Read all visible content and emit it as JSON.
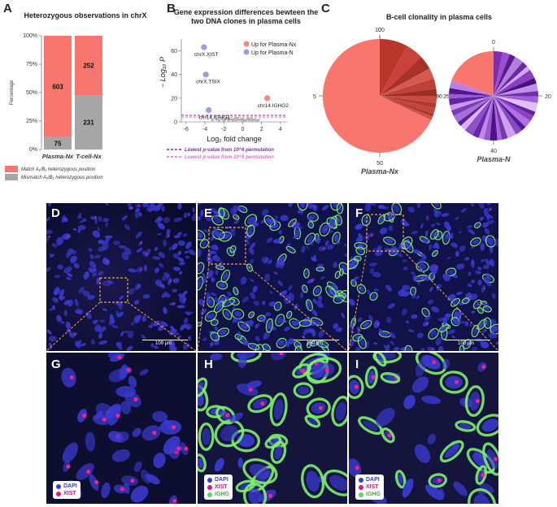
{
  "panelA": {
    "letter": "A",
    "title": "Heterozygous observations in chrX",
    "ylabel": "Percentage",
    "legend": [
      {
        "label": "Match A₁/B₁ heterozygous position",
        "color": "#f8766d"
      },
      {
        "label": "Mismatch A₁/B₁ heterozygous position",
        "color": "#a6a6a6"
      }
    ]
  },
  "panelB": {
    "letter": "B",
    "title_line1": "Gene expression differences bewteen the",
    "title_line2": "two DNA clones in plasma cells",
    "xlabel": "Log₂ fold change",
    "ylabel": "− Log₁₀ P",
    "legend": [
      {
        "label": "Up for Plasma-Nx",
        "color": "#f08a7e"
      },
      {
        "label": "Up for Plasma-N",
        "color": "#a49ad8"
      }
    ],
    "threshold_legend": [
      {
        "label": "Lowest p-value from 10^6 permutation",
        "color": "#7a2f9e"
      },
      {
        "label": "Lowest p-value from 10^5 permutation",
        "color": "#e46fc0"
      }
    ]
  },
  "panelC": {
    "letter": "C",
    "title": "B-cell clonality in plasma cells",
    "pie1_label": "Plasma-Nx",
    "pie2_label": "Plasma-N",
    "pie1_ticks": [
      "0",
      "25",
      "50",
      "75",
      "100"
    ],
    "pie2_ticks": [
      "0",
      "20",
      "40",
      "60"
    ]
  },
  "micro": {
    "letters": [
      "D",
      "E",
      "F",
      "G",
      "H",
      "I"
    ],
    "scale_label": "100 μm",
    "legendG": [
      {
        "label": "DAPI",
        "color": "#3a3ad0"
      },
      {
        "label": "XIST",
        "color": "#e0157a"
      }
    ],
    "legendH": [
      {
        "label": "DAPI",
        "color": "#3a3ad0"
      },
      {
        "label": "XIST",
        "color": "#e0157a"
      },
      {
        "label": "IGHG",
        "color": "#5fd16a"
      }
    ]
  },
  "chart_data": [
    {
      "type": "bar",
      "stacked": true,
      "title": "Heterozygous observations in chrX",
      "ylabel": "Percentage",
      "categories": [
        "Plasma-Nx",
        "T-cell-Nx"
      ],
      "series": [
        {
          "name": "Mismatch A₁/B₁ heterozygous position",
          "values": [
            75,
            231
          ],
          "color": "#a6a6a6"
        },
        {
          "name": "Match A₁/B₁ heterozygous position",
          "values": [
            603,
            252
          ],
          "color": "#f8766d"
        }
      ],
      "yticks": [
        "0%",
        "25%",
        "50%",
        "75%",
        "100%"
      ]
    },
    {
      "type": "scatter",
      "title": "Gene expression differences bewteen the two DNA clones in plasma cells",
      "xlabel": "Log₂ fold change",
      "ylabel": "− Log₁₀ P",
      "xlim": [
        -6.5,
        4.7
      ],
      "ylim": [
        0,
        70
      ],
      "xticks": [
        -6,
        -4,
        -2,
        0,
        2,
        4
      ],
      "yticks": [
        0,
        20,
        40,
        60
      ],
      "labeled_points": [
        {
          "label": "chrX.XIST",
          "x": -4.1,
          "y": 63,
          "group": "Up for Plasma-N"
        },
        {
          "label": "chrX.TSIX",
          "x": -3.9,
          "y": 40,
          "group": "Up for Plasma-N"
        },
        {
          "label": "chr14.IGHG1",
          "x": -3.6,
          "y": 10,
          "group": "Up for Plasma-N"
        },
        {
          "label": "chr14.IGHG2",
          "x": 2.6,
          "y": 20,
          "group": "Up for Plasma-Nx"
        }
      ],
      "thresholds": [
        {
          "name": "Lowest p-value from 10^6 permutation",
          "y": 5.5,
          "color": "#7a2f9e"
        },
        {
          "name": "Lowest p-value from 10^5 permutation",
          "y": 4.0,
          "color": "#e46fc0"
        }
      ],
      "background_points_x": [
        -3.2,
        -2.8,
        -2.5,
        -2.2,
        -1.9,
        -1.7,
        -1.5,
        -1.3,
        -1.1,
        -0.9,
        -0.7,
        -0.5,
        -0.3,
        -0.1,
        0.1,
        0.3,
        0.5,
        0.7,
        0.9,
        1.1,
        1.3,
        1.5,
        1.7,
        -2.0,
        -1.0,
        0.0,
        1.0,
        -1.6,
        -0.6,
        0.6
      ],
      "background_points_y": [
        1.5,
        2.0,
        1.2,
        2.4,
        1.6,
        2.8,
        1.4,
        2.2,
        1.8,
        2.6,
        1.3,
        2.1,
        1.7,
        2.5,
        1.9,
        1.1,
        2.3,
        1.5,
        2.7,
        1.6,
        2.0,
        1.2,
        1.8,
        0.8,
        0.9,
        1.0,
        0.7,
        3.0,
        3.2,
        2.9
      ]
    },
    {
      "type": "pie",
      "title": "Plasma-Nx",
      "values": [
        68,
        8,
        5,
        4,
        3,
        3,
        2,
        2,
        1.5,
        1.5,
        1,
        1
      ],
      "colors": [
        "#f8766d",
        "#b8362a",
        "#c9413a",
        "#a8322a",
        "#d45a52",
        "#bf4038",
        "#993028",
        "#cc4a40",
        "#b33a30",
        "#c04540",
        "#aa3830",
        "#d0504a"
      ],
      "ticks": [
        0,
        25,
        50,
        75,
        100
      ]
    },
    {
      "type": "pie",
      "title": "Plasma-N",
      "values": [
        18,
        3,
        2.5,
        2,
        3,
        2,
        1.5,
        3,
        2,
        2.5,
        1.8,
        2.2,
        3,
        1.5,
        2,
        2.5,
        1.7,
        2.3,
        3,
        2,
        1.5,
        2.5,
        2,
        1.8,
        2.2,
        3,
        2,
        1.5,
        2.5,
        2,
        1.8,
        2.2,
        1.5,
        2,
        2.5
      ],
      "colors": [
        "#f8766d",
        "#7b2fb0",
        "#9b4fd0",
        "#5a1a90",
        "#b57de0",
        "#6a2aa0",
        "#d2a8f0",
        "#8a3fc0",
        "#4a1080",
        "#c090e8",
        "#7030a8",
        "#a060d8",
        "#e0c0f5",
        "#6020a0",
        "#9040c8",
        "#b070e0",
        "#5018a0",
        "#8848c0",
        "#cfa0ee",
        "#7438b0",
        "#a868d8",
        "#4c1488",
        "#9a58d0",
        "#bf88e6",
        "#6a28a8",
        "#8e50c8",
        "#d8b4f2",
        "#5c209a",
        "#a470d8",
        "#7c3cb8",
        "#c898ea",
        "#6224a4",
        "#9c5ad0",
        "#4e1690",
        "#b880e2"
      ],
      "ticks": [
        0,
        20,
        40,
        60
      ]
    }
  ]
}
